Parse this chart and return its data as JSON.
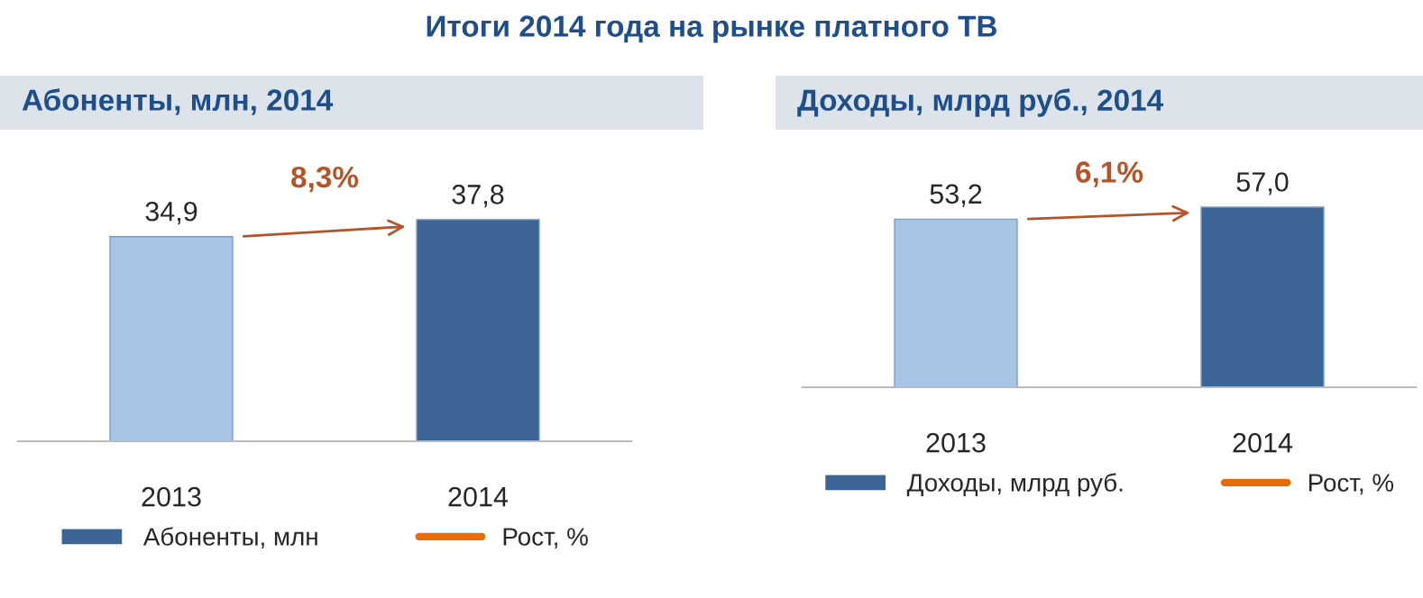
{
  "chart_data": [
    {
      "type": "bar",
      "title": "Итоги 2014 года на рынке платного ТВ",
      "subtitle": "Абоненты, млн, 2014",
      "categories": [
        "2013",
        "2014"
      ],
      "series": [
        {
          "name": "Абоненты, млн",
          "color": "#3c6497",
          "colors": [
            "#a7c3e5",
            "#3c6497"
          ],
          "values": [
            34.9,
            37.8
          ],
          "value_labels": [
            "34,9",
            "37,8"
          ]
        },
        {
          "name": "Рост, %",
          "type": "line",
          "color": "#e46c0a",
          "values": [
            null,
            null
          ]
        }
      ],
      "annotations": [
        "8,3%"
      ],
      "legend": "bottom",
      "grid": false
    },
    {
      "type": "bar",
      "subtitle": "Доходы, млрд руб., 2014",
      "categories": [
        "2013",
        "2014"
      ],
      "series": [
        {
          "name": "Доходы, млрд руб.",
          "color": "#3c6497",
          "colors": [
            "#a7c3e5",
            "#3c6497"
          ],
          "values": [
            53.2,
            57.0
          ],
          "value_labels": [
            "53,2",
            "57,0"
          ]
        },
        {
          "name": "Рост, %",
          "type": "line",
          "color": "#e46c0a",
          "values": [
            null,
            null
          ]
        }
      ],
      "annotations": [
        "6,1%"
      ],
      "legend": "bottom",
      "grid": false
    }
  ]
}
